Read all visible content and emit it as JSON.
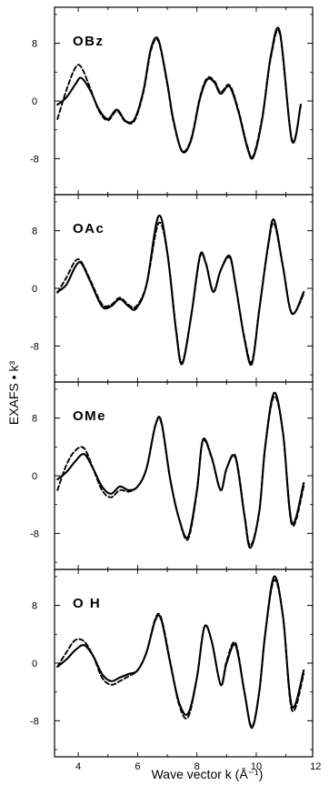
{
  "chart_data": {
    "type": "line",
    "title": "",
    "xlabel": "Wave vector k (Å⁻¹)",
    "ylabel": "EXAFS • k³",
    "xlim": [
      3.2,
      11.9
    ],
    "x_ticks": [
      "4",
      "6",
      "8",
      "10",
      "12"
    ],
    "x_tick_values": [
      4,
      6,
      8,
      10,
      12
    ],
    "y_ticks": [
      "8",
      "0",
      "-8"
    ],
    "y_tick_values": [
      8,
      0,
      -8
    ],
    "ylim": [
      -13,
      13
    ],
    "series_styles": [
      "solid",
      "dashed"
    ],
    "panels": [
      {
        "label": "OBz",
        "x": [
          3.3,
          3.6,
          3.9,
          4.1,
          4.4,
          4.7,
          5.0,
          5.3,
          5.6,
          5.9,
          6.2,
          6.45,
          6.7,
          7.0,
          7.2,
          7.5,
          7.8,
          8.1,
          8.35,
          8.6,
          8.8,
          9.1,
          9.4,
          9.7,
          9.9,
          10.2,
          10.5,
          10.8,
          11.2,
          11.5
        ],
        "series": [
          {
            "values": [
              -0.5,
              0.5,
              2.3,
              3.2,
              1.5,
              -1.2,
              -2.5,
              -1.2,
              -2.8,
              -2.5,
              1.5,
              7.3,
              8.5,
              2.5,
              -2.5,
              -7.0,
              -5.5,
              0.3,
              3.0,
              2.5,
              1.0,
              2.0,
              -1.5,
              -6.5,
              -7.8,
              -2.5,
              6.5,
              9.5,
              -5.5,
              -0.5
            ]
          },
          {
            "values": [
              -2.5,
              1.5,
              4.6,
              4.7,
              1.8,
              -1.4,
              -2.7,
              -1.4,
              -2.9,
              -2.7,
              1.3,
              7.0,
              8.3,
              2.3,
              -2.7,
              -6.9,
              -5.3,
              0.5,
              3.2,
              2.7,
              1.2,
              2.2,
              -1.3,
              -6.3,
              -7.6,
              -2.3,
              6.2,
              9.2,
              -5.3,
              -0.6
            ]
          }
        ]
      },
      {
        "label": "OAc",
        "x": [
          3.3,
          3.6,
          3.9,
          4.1,
          4.4,
          4.8,
          5.1,
          5.4,
          5.7,
          5.95,
          6.3,
          6.7,
          7.0,
          7.3,
          7.5,
          7.8,
          8.1,
          8.3,
          8.55,
          8.8,
          9.1,
          9.3,
          9.6,
          9.85,
          10.1,
          10.4,
          10.6,
          10.9,
          11.2,
          11.6
        ],
        "series": [
          {
            "values": [
              -0.5,
              0.5,
              3.0,
              3.5,
              1.0,
              -2.5,
              -2.5,
              -1.5,
              -2.5,
              -2.8,
              0.5,
              10.0,
              5.0,
              -6.0,
              -10.5,
              -4.0,
              4.5,
              3.5,
              -0.5,
              2.5,
              4.5,
              0.5,
              -7.0,
              -10.5,
              -3.0,
              6.0,
              9.5,
              3.0,
              -3.5,
              -0.5
            ]
          },
          {
            "values": [
              -0.6,
              1.5,
              3.8,
              3.7,
              1.2,
              -2.2,
              -2.3,
              -1.3,
              -2.3,
              -2.5,
              0.5,
              9.0,
              5.0,
              -5.8,
              -10.3,
              -4.0,
              4.3,
              3.5,
              -0.4,
              2.5,
              4.3,
              0.5,
              -6.8,
              -10.2,
              -3.0,
              5.8,
              9.0,
              3.0,
              -3.4,
              -0.8
            ]
          }
        ]
      },
      {
        "label": "OMe",
        "x": [
          3.3,
          3.6,
          3.9,
          4.2,
          4.5,
          4.8,
          5.1,
          5.4,
          5.7,
          6.0,
          6.3,
          6.6,
          6.8,
          7.1,
          7.4,
          7.7,
          8.0,
          8.2,
          8.5,
          8.8,
          9.0,
          9.3,
          9.6,
          9.8,
          10.1,
          10.3,
          10.6,
          10.9,
          11.2,
          11.6
        ],
        "series": [
          {
            "values": [
              -0.5,
              0.5,
              2.0,
              3.0,
              1.0,
              -1.5,
              -2.5,
              -1.5,
              -2.0,
              -1.5,
              1.0,
              7.0,
              7.5,
              -0.5,
              -6.0,
              -8.5,
              -2.0,
              5.0,
              2.5,
              -2.0,
              1.0,
              2.5,
              -5.5,
              -10.0,
              -5.0,
              4.0,
              11.5,
              6.0,
              -6.5,
              -1.0
            ]
          },
          {
            "values": [
              -2.0,
              1.5,
              3.5,
              3.8,
              1.0,
              -2.0,
              -3.0,
              -2.0,
              -2.2,
              -1.5,
              1.0,
              7.0,
              7.3,
              -0.5,
              -6.0,
              -8.8,
              -2.2,
              4.8,
              2.4,
              -2.0,
              1.0,
              2.7,
              -5.3,
              -9.7,
              -5.0,
              4.0,
              11.0,
              6.0,
              -6.8,
              -1.5
            ]
          }
        ]
      },
      {
        "label": "O H",
        "x": [
          3.3,
          3.6,
          3.9,
          4.2,
          4.5,
          4.8,
          5.1,
          5.4,
          5.7,
          6.0,
          6.3,
          6.6,
          6.8,
          7.1,
          7.4,
          7.7,
          8.0,
          8.25,
          8.5,
          8.8,
          9.0,
          9.3,
          9.6,
          9.85,
          10.1,
          10.3,
          10.6,
          10.9,
          11.2,
          11.6
        ],
        "series": [
          {
            "values": [
              -0.5,
              0.5,
              1.8,
              2.5,
              1.0,
              -1.5,
              -2.5,
              -2.0,
              -1.5,
              -1.0,
              1.5,
              6.0,
              6.0,
              0.0,
              -5.5,
              -7.0,
              -2.0,
              5.0,
              3.0,
              -3.0,
              0.0,
              2.5,
              -4.0,
              -9.0,
              -4.0,
              4.0,
              12.0,
              6.5,
              -6.0,
              -1.0
            ]
          },
          {
            "values": [
              -0.5,
              1.5,
              3.2,
              3.0,
              1.0,
              -2.0,
              -3.0,
              -2.5,
              -1.8,
              -1.0,
              1.5,
              6.2,
              6.2,
              0.2,
              -5.8,
              -7.5,
              -2.0,
              5.0,
              3.0,
              -3.0,
              0.3,
              2.8,
              -4.0,
              -8.8,
              -4.0,
              4.0,
              11.5,
              6.5,
              -6.5,
              -1.5
            ]
          }
        ]
      }
    ]
  }
}
